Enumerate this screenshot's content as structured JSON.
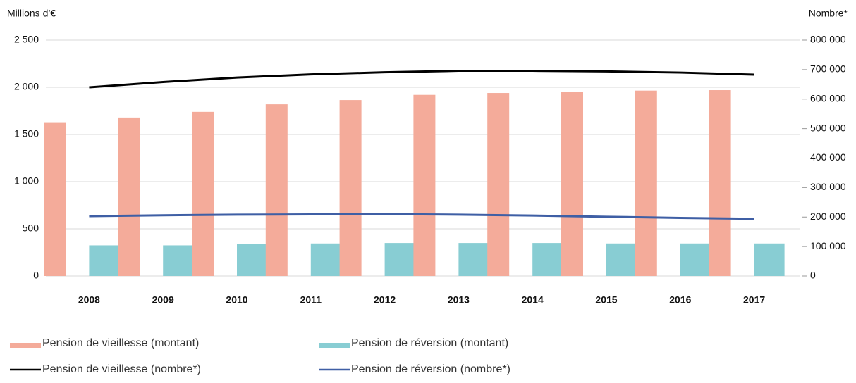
{
  "chart_data": {
    "type": "combo",
    "ylabel": "Millions d’€",
    "y2label": "Nombre*",
    "categories": [
      "2008",
      "2009",
      "2010",
      "2011",
      "2012",
      "2013",
      "2014",
      "2015",
      "2016",
      "2017"
    ],
    "series": [
      {
        "name": "Pension de vieillesse (montant)",
        "type": "bar",
        "color": "#f4ab9a",
        "values": [
          1630,
          1680,
          1740,
          1820,
          1865,
          1920,
          1940,
          1955,
          1965,
          1970
        ]
      },
      {
        "name": "Pension de réversion (montant)",
        "type": "bar",
        "color": "#88cdd3",
        "values": [
          325,
          325,
          340,
          345,
          350,
          350,
          350,
          345,
          345,
          345
        ]
      },
      {
        "name": "Pension de vieillesse (nombre*)",
        "type": "line",
        "axis": "y2",
        "color": "#000000",
        "values": [
          640000,
          658000,
          673000,
          684000,
          691000,
          696000,
          696000,
          694000,
          690000,
          683000
        ]
      },
      {
        "name": "Pension de réversion (nombre*)",
        "type": "line",
        "axis": "y2",
        "color": "#3f5fa5",
        "values": [
          203000,
          206000,
          208000,
          209000,
          210000,
          208000,
          205000,
          201000,
          197000,
          194000
        ]
      }
    ],
    "ylim": [
      0,
      2500
    ],
    "yticks": [
      0,
      500,
      {
        "value": 1000,
        "label": "1 000"
      },
      {
        "value": 1500,
        "label": "1 500"
      },
      {
        "value": 2000,
        "label": "2 000"
      },
      {
        "value": 2500,
        "label": "2 500"
      }
    ],
    "y2lim": [
      0,
      800000
    ],
    "y2ticks": [
      0,
      {
        "value": 100000,
        "label": "100 000"
      },
      {
        "value": 200000,
        "label": "200 000"
      },
      {
        "value": 300000,
        "label": "300 000"
      },
      {
        "value": 400000,
        "label": "400 000"
      },
      {
        "value": 500000,
        "label": "500 000"
      },
      {
        "value": 600000,
        "label": "600 000"
      },
      {
        "value": 700000,
        "label": "700 000"
      },
      {
        "value": 800000,
        "label": "800 000"
      }
    ],
    "grid": true
  }
}
